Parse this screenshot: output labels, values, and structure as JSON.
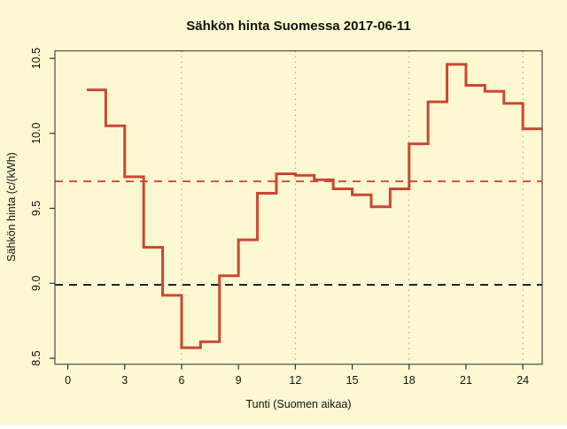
{
  "page": {
    "background_color": "#FCF8D2"
  },
  "chart": {
    "title": "Sähkön hinta Suomessa 2017-06-11",
    "xlabel": "Tunti (Suomen aikaa)",
    "ylabel": "Sähkön hinta (c/(kWh)"
  },
  "chart_data": {
    "type": "line",
    "subtype": "step-post",
    "title": "Sähkön hinta Suomessa 2017-06-11",
    "xlabel": "Tunti (Suomen aikaa)",
    "ylabel": "Sähkön hinta (c/(kWh)",
    "x_hour_start": [
      1,
      2,
      3,
      4,
      5,
      6,
      7,
      8,
      9,
      10,
      11,
      12,
      13,
      14,
      15,
      16,
      17,
      18,
      19,
      20,
      21,
      22,
      23,
      24
    ],
    "values": [
      10.29,
      10.05,
      9.71,
      9.24,
      8.92,
      8.57,
      8.61,
      9.05,
      9.29,
      9.6,
      9.73,
      9.72,
      9.69,
      9.63,
      9.59,
      9.51,
      9.63,
      9.93,
      10.21,
      10.46,
      10.32,
      10.28,
      10.2,
      10.03
    ],
    "step_end_x": 25,
    "xticks": [
      0,
      3,
      6,
      9,
      12,
      15,
      18,
      21,
      24
    ],
    "xtick_labels": [
      "0",
      "3",
      "6",
      "9",
      "12",
      "15",
      "18",
      "21",
      "24"
    ],
    "yticks": [
      8.5,
      9.0,
      9.5,
      10.0,
      10.5
    ],
    "ytick_labels": [
      "8.5",
      "9.0",
      "9.5",
      "10.0",
      "10.5"
    ],
    "xlim": [
      -0.68,
      25.02
    ],
    "ylim": [
      8.46,
      10.55
    ],
    "grid_x": [
      6,
      12,
      18,
      24
    ],
    "grid_style": "dotted-vertical",
    "legend": "none",
    "reference_lines": [
      {
        "name": "red-dashed-mean-line",
        "value": 9.68,
        "color": "#D05740",
        "style": "dashed"
      },
      {
        "name": "black-dashed-line",
        "value": 8.99,
        "color": "#23232B",
        "style": "dashed"
      }
    ],
    "line_color": "#CC4731",
    "background_color": "#FCF8D2",
    "grid_color": "#999988",
    "box_color": "#4A4A4A"
  }
}
